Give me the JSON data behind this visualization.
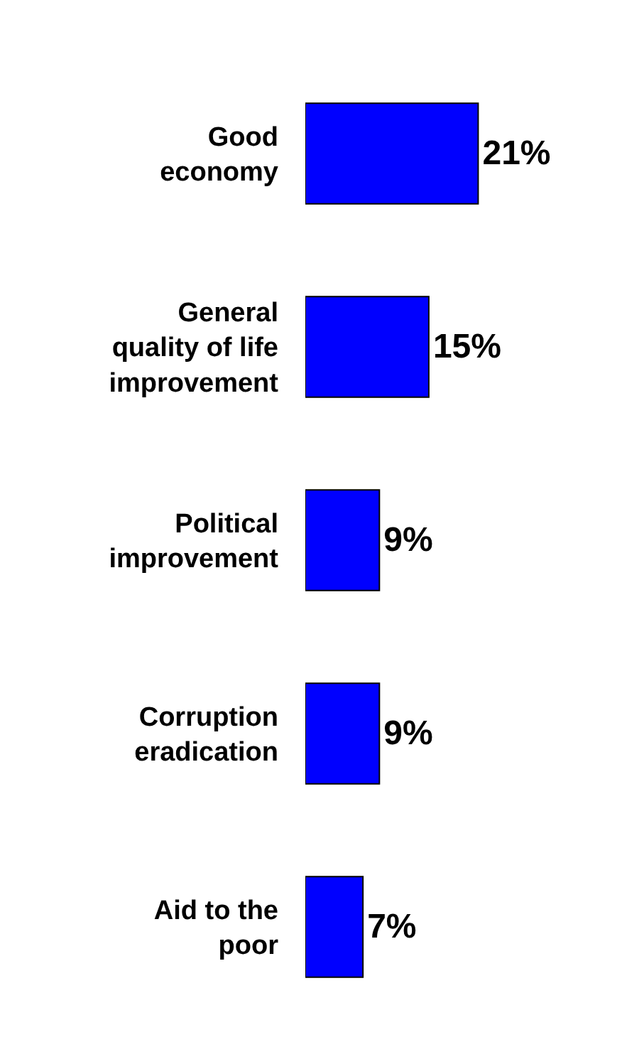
{
  "chart_data": {
    "type": "bar",
    "orientation": "horizontal",
    "categories": [
      "Good\neconomy",
      "General\nquality of life\nimprovement",
      "Political\nimprovement",
      "Corruption\neradication",
      "Aid to the\npoor"
    ],
    "values": [
      21,
      15,
      9,
      9,
      7
    ],
    "value_labels": [
      "21%",
      "15%",
      "9%",
      "9%",
      "7%"
    ],
    "color": "#0000ff"
  }
}
